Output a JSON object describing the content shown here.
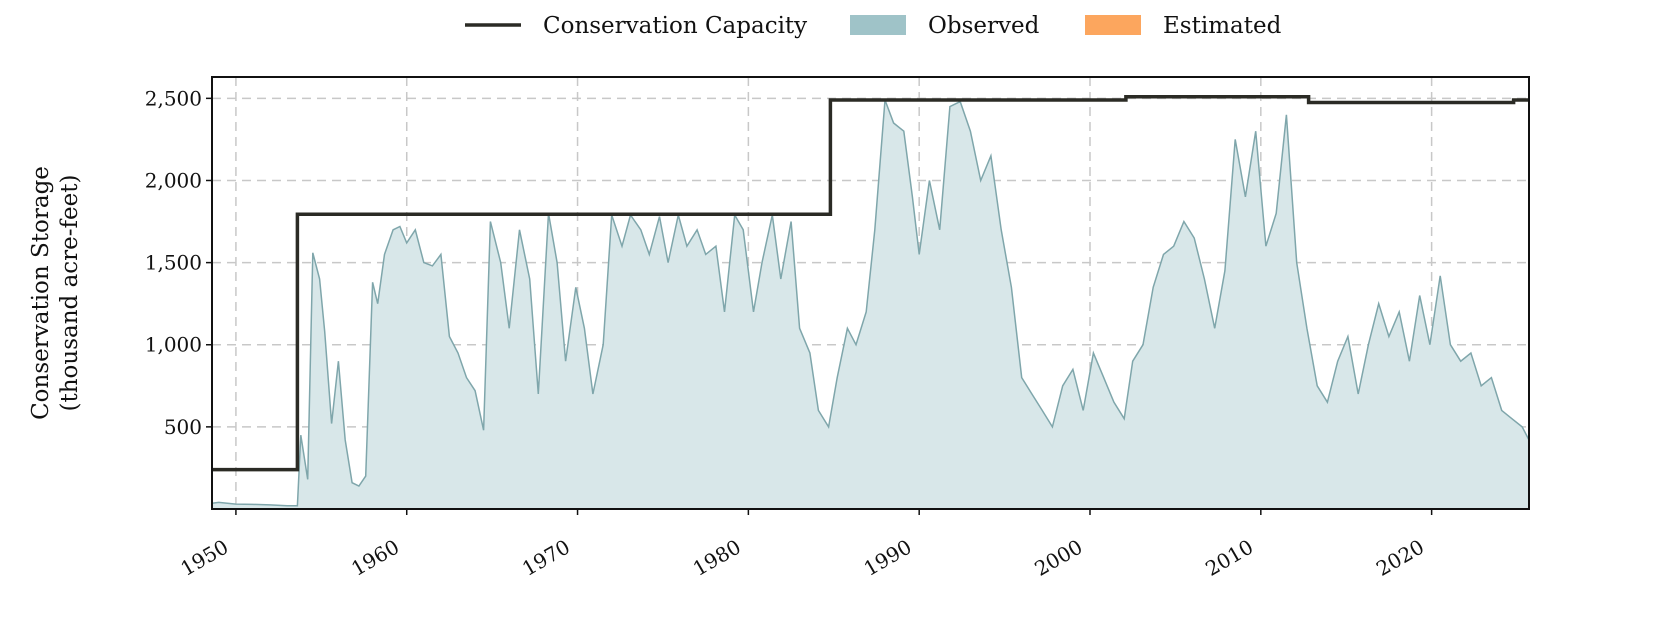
{
  "chart_data": {
    "type": "area",
    "title": "",
    "xlabel": "",
    "ylabel_lines": [
      "Conservation Storage",
      "(thousand acre-feet)"
    ],
    "xlim": [
      1948.6,
      2025.7
    ],
    "ylim": [
      0,
      2630
    ],
    "x_ticks": [
      1950,
      1960,
      1970,
      1980,
      1990,
      2000,
      2010,
      2020
    ],
    "x_tick_labels": [
      "1950",
      "1960",
      "1970",
      "1980",
      "1990",
      "2000",
      "2010",
      "2020"
    ],
    "y_ticks": [
      500,
      1000,
      1500,
      2000,
      2500
    ],
    "y_tick_labels": [
      "500",
      "1,000",
      "1,500",
      "2,000",
      "2,500"
    ],
    "grid": true,
    "legend_position": "top-center",
    "legend": [
      {
        "label": "Conservation Capacity",
        "kind": "line",
        "color": "#2b2b25"
      },
      {
        "label": "Observed",
        "kind": "patch",
        "color": "#9fc3c8"
      },
      {
        "label": "Estimated",
        "kind": "patch",
        "color": "#fca65e"
      }
    ],
    "series": [
      {
        "name": "Conservation Capacity",
        "kind": "step",
        "color": "#2b2b25",
        "x": [
          1948.6,
          1953.6,
          1953.6,
          1984.8,
          1984.8,
          2002.1,
          2002.1,
          2012.8,
          2012.8,
          2024.8,
          2024.8,
          2025.7
        ],
        "y": [
          240,
          240,
          1795,
          1795,
          2490,
          2490,
          2510,
          2510,
          2475,
          2475,
          2490,
          2490
        ]
      },
      {
        "name": "Observed",
        "kind": "area",
        "color": "#9fc3c8",
        "fill": "#d8e7e9",
        "x": [
          1948.6,
          1949.0,
          1950.0,
          1951.0,
          1952.0,
          1953.0,
          1953.6,
          1953.8,
          1954.2,
          1954.5,
          1954.9,
          1955.2,
          1955.6,
          1956.0,
          1956.4,
          1956.8,
          1957.2,
          1957.6,
          1958.0,
          1958.3,
          1958.7,
          1959.2,
          1959.6,
          1960.0,
          1960.5,
          1961.0,
          1961.5,
          1962.0,
          1962.5,
          1963.0,
          1963.5,
          1964.0,
          1964.5,
          1964.9,
          1965.5,
          1966.0,
          1966.6,
          1967.2,
          1967.7,
          1968.3,
          1968.8,
          1969.3,
          1969.9,
          1970.4,
          1970.9,
          1971.5,
          1972.0,
          1972.6,
          1973.1,
          1973.7,
          1974.2,
          1974.8,
          1975.3,
          1975.9,
          1976.4,
          1977.0,
          1977.5,
          1978.1,
          1978.6,
          1979.2,
          1979.7,
          1980.3,
          1980.8,
          1981.4,
          1981.9,
          1982.5,
          1983.0,
          1983.6,
          1984.1,
          1984.7,
          1985.2,
          1985.8,
          1986.3,
          1986.9,
          1987.4,
          1988.0,
          1988.5,
          1989.1,
          1989.6,
          1990.0,
          1990.6,
          1991.2,
          1991.8,
          1992.4,
          1993.0,
          1993.6,
          1994.2,
          1994.8,
          1995.4,
          1996.0,
          1996.6,
          1997.2,
          1997.8,
          1998.4,
          1999.0,
          1999.6,
          2000.2,
          2000.8,
          2001.4,
          2002.0,
          2002.5,
          2003.1,
          2003.7,
          2004.3,
          2004.9,
          2005.5,
          2006.1,
          2006.7,
          2007.3,
          2007.9,
          2008.5,
          2009.1,
          2009.7,
          2010.3,
          2010.9,
          2011.5,
          2012.1,
          2012.7,
          2013.3,
          2013.9,
          2014.5,
          2015.1,
          2015.7,
          2016.3,
          2016.9,
          2017.5,
          2018.1,
          2018.7,
          2019.3,
          2019.9,
          2020.5,
          2021.1,
          2021.7,
          2022.3,
          2022.9,
          2023.5,
          2024.1,
          2024.7,
          2025.3,
          2025.7
        ],
        "y": [
          35,
          40,
          30,
          28,
          25,
          20,
          20,
          450,
          180,
          1560,
          1400,
          1080,
          520,
          900,
          420,
          160,
          140,
          200,
          1380,
          1250,
          1550,
          1700,
          1720,
          1620,
          1700,
          1500,
          1480,
          1550,
          1050,
          950,
          800,
          720,
          480,
          1750,
          1500,
          1100,
          1700,
          1400,
          700,
          1800,
          1500,
          900,
          1350,
          1100,
          700,
          1000,
          1790,
          1600,
          1790,
          1700,
          1550,
          1780,
          1500,
          1790,
          1600,
          1700,
          1550,
          1600,
          1200,
          1790,
          1700,
          1200,
          1500,
          1790,
          1400,
          1750,
          1100,
          950,
          600,
          500,
          800,
          1100,
          1000,
          1200,
          1700,
          2490,
          2350,
          2300,
          1900,
          1550,
          2000,
          1700,
          2450,
          2480,
          2300,
          2000,
          2150,
          1700,
          1350,
          800,
          700,
          600,
          500,
          750,
          850,
          600,
          950,
          800,
          650,
          550,
          900,
          1000,
          1350,
          1550,
          1600,
          1750,
          1650,
          1400,
          1100,
          1450,
          2250,
          1900,
          2300,
          1600,
          1800,
          2400,
          1500,
          1100,
          750,
          650,
          900,
          1050,
          700,
          1000,
          1250,
          1050,
          1200,
          900,
          1300,
          1000,
          1420,
          1000,
          900,
          950,
          750,
          800,
          600,
          550,
          500,
          420
        ]
      }
    ]
  }
}
